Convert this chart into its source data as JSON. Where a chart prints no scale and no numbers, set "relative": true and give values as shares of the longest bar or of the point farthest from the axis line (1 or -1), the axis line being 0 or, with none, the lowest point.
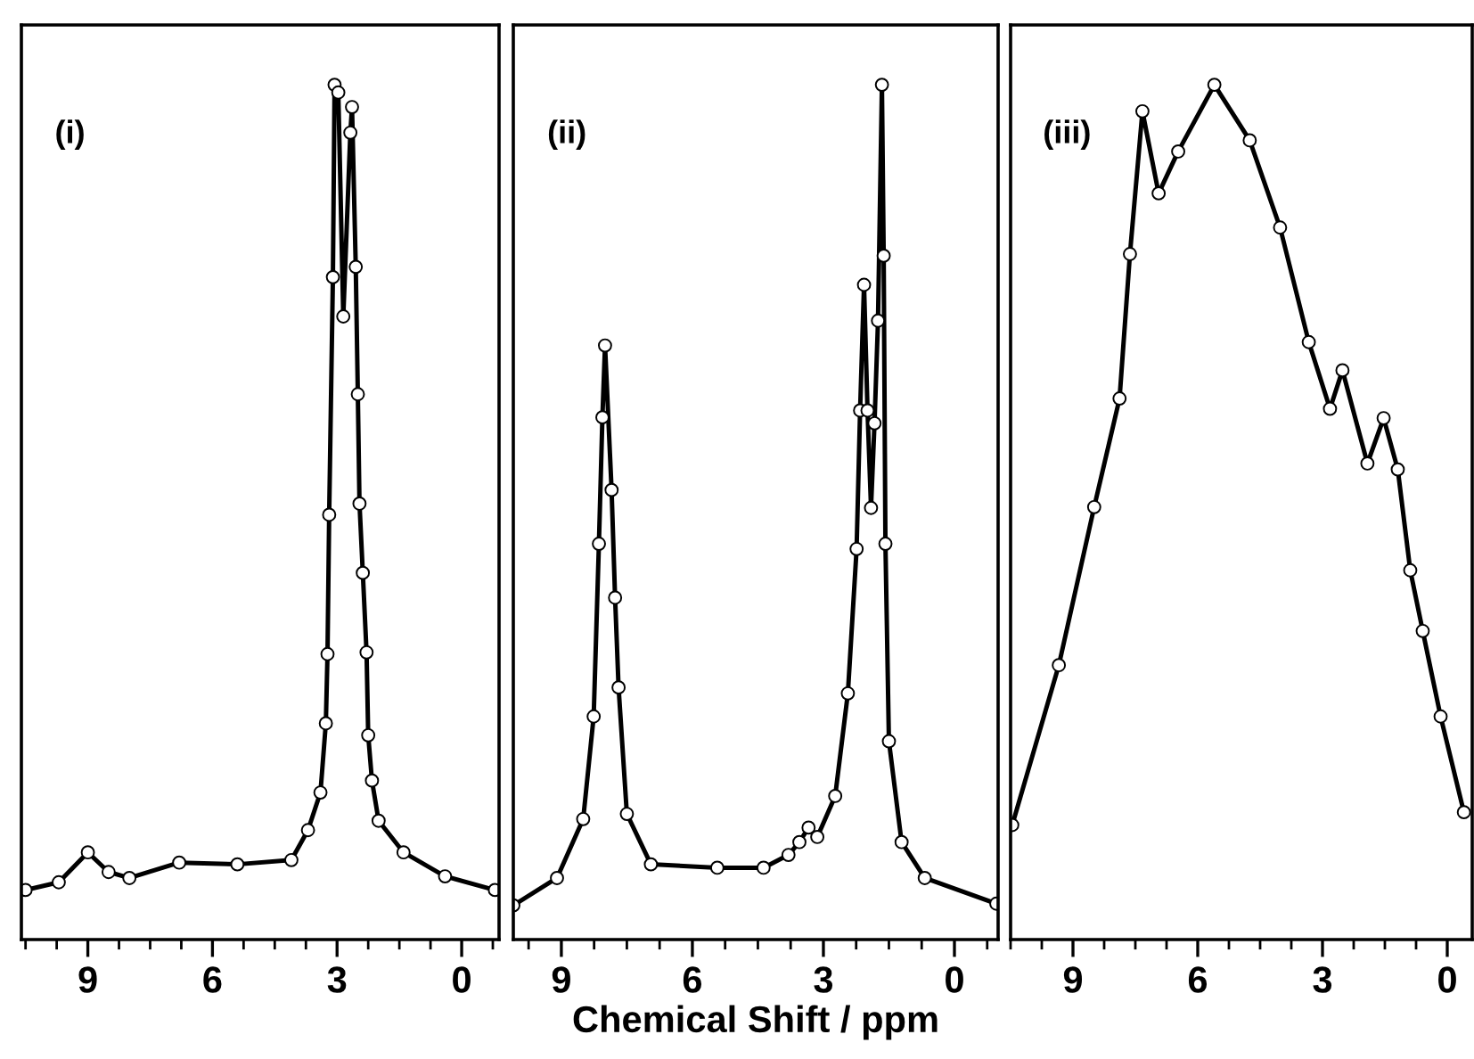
{
  "chart_data": [
    {
      "type": "line",
      "relative": true,
      "marker": "circle",
      "tick_labels": "x",
      "annotations": [
        "(i)"
      ],
      "xlim": [
        10.6,
        -0.9
      ],
      "xticks": [
        {
          "value": 10.5,
          "label": null
        },
        {
          "value": 9.75,
          "label": null
        },
        9,
        {
          "value": 8.25,
          "label": null
        },
        {
          "value": 7.5,
          "label": null
        },
        {
          "value": 6.75,
          "label": null
        },
        6,
        {
          "value": 5.25,
          "label": null
        },
        {
          "value": 4.5,
          "label": null
        },
        {
          "value": 3.75,
          "label": null
        },
        3,
        {
          "value": 2.25,
          "label": null
        },
        {
          "value": 1.5,
          "label": null
        },
        {
          "value": 0.75,
          "label": null
        },
        0,
        {
          "value": -0.75,
          "label": null
        }
      ],
      "series": [
        {
          "color": "#000000",
          "x": [
            10.5,
            9.7,
            9.0,
            8.5,
            8.0,
            6.8,
            5.4,
            4.1,
            3.7,
            3.4,
            3.27,
            3.23,
            3.19,
            3.1,
            3.06,
            2.97,
            2.85,
            2.68,
            2.64,
            2.55,
            2.5,
            2.46,
            2.38,
            2.29,
            2.25,
            2.16,
            2.0,
            1.4,
            0.4,
            -0.8
          ],
          "values": [
            0.058,
            0.067,
            0.102,
            0.079,
            0.072,
            0.09,
            0.088,
            0.093,
            0.128,
            0.172,
            0.253,
            0.334,
            0.497,
            0.775,
            1.0,
            0.991,
            0.729,
            0.944,
            0.974,
            0.787,
            0.638,
            0.51,
            0.429,
            0.336,
            0.239,
            0.186,
            0.139,
            0.102,
            0.074,
            0.058
          ]
        }
      ]
    },
    {
      "type": "line",
      "relative": true,
      "marker": "circle",
      "tick_labels": "x",
      "annotations": [
        "(ii)"
      ],
      "xlabel": "Chemical Shift / ppm",
      "xlim": [
        10.1,
        -1.0
      ],
      "xticks": [
        {
          "value": 9.75,
          "label": null
        },
        9,
        {
          "value": 8.25,
          "label": null
        },
        {
          "value": 7.5,
          "label": null
        },
        {
          "value": 6.75,
          "label": null
        },
        6,
        {
          "value": 5.25,
          "label": null
        },
        {
          "value": 4.5,
          "label": null
        },
        {
          "value": 3.75,
          "label": null
        },
        3,
        {
          "value": 2.25,
          "label": null
        },
        {
          "value": 1.5,
          "label": null
        },
        {
          "value": 0.75,
          "label": null
        },
        0,
        {
          "value": -0.75,
          "label": null
        }
      ],
      "series": [
        {
          "color": "#000000",
          "x": [
            10.1,
            9.1,
            8.5,
            8.26,
            8.14,
            8.06,
            8.0,
            7.85,
            7.77,
            7.69,
            7.5,
            6.95,
            5.43,
            4.37,
            3.8,
            3.55,
            3.34,
            3.14,
            2.73,
            2.44,
            2.24,
            2.16,
            2.07,
            1.99,
            1.91,
            1.83,
            1.75,
            1.66,
            1.62,
            1.58,
            1.5,
            1.21,
            0.68,
            -0.96
          ],
          "values": [
            0.04,
            0.072,
            0.141,
            0.261,
            0.463,
            0.611,
            0.695,
            0.526,
            0.4,
            0.295,
            0.147,
            0.088,
            0.084,
            0.084,
            0.099,
            0.114,
            0.131,
            0.12,
            0.168,
            0.288,
            0.457,
            0.619,
            0.766,
            0.619,
            0.505,
            0.604,
            0.724,
            1.0,
            0.8,
            0.463,
            0.232,
            0.114,
            0.072,
            0.042
          ]
        }
      ]
    },
    {
      "type": "line",
      "relative": true,
      "marker": "circle",
      "tick_labels": "x",
      "annotations": [
        "(iii)"
      ],
      "xlim": [
        10.5,
        -0.6
      ],
      "xticks": [
        {
          "value": 10.5,
          "label": null
        },
        {
          "value": 9.75,
          "label": null
        },
        9,
        {
          "value": 8.25,
          "label": null
        },
        {
          "value": 7.5,
          "label": null
        },
        {
          "value": 6.75,
          "label": null
        },
        6,
        {
          "value": 5.25,
          "label": null
        },
        {
          "value": 4.5,
          "label": null
        },
        {
          "value": 3.75,
          "label": null
        },
        3,
        {
          "value": 2.25,
          "label": null
        },
        {
          "value": 1.5,
          "label": null
        },
        {
          "value": 0.75,
          "label": null
        },
        0
      ],
      "series": [
        {
          "color": "#000000",
          "x": [
            10.46,
            9.34,
            8.49,
            7.88,
            7.63,
            7.33,
            6.94,
            6.47,
            5.6,
            4.75,
            4.02,
            3.33,
            2.82,
            2.52,
            1.92,
            1.53,
            1.19,
            0.89,
            0.59,
            0.16,
            -0.4
          ],
          "values": [
            0.134,
            0.321,
            0.506,
            0.633,
            0.802,
            0.969,
            0.873,
            0.922,
            1.0,
            0.935,
            0.833,
            0.699,
            0.621,
            0.666,
            0.557,
            0.61,
            0.55,
            0.432,
            0.361,
            0.261,
            0.149
          ]
        }
      ]
    }
  ]
}
